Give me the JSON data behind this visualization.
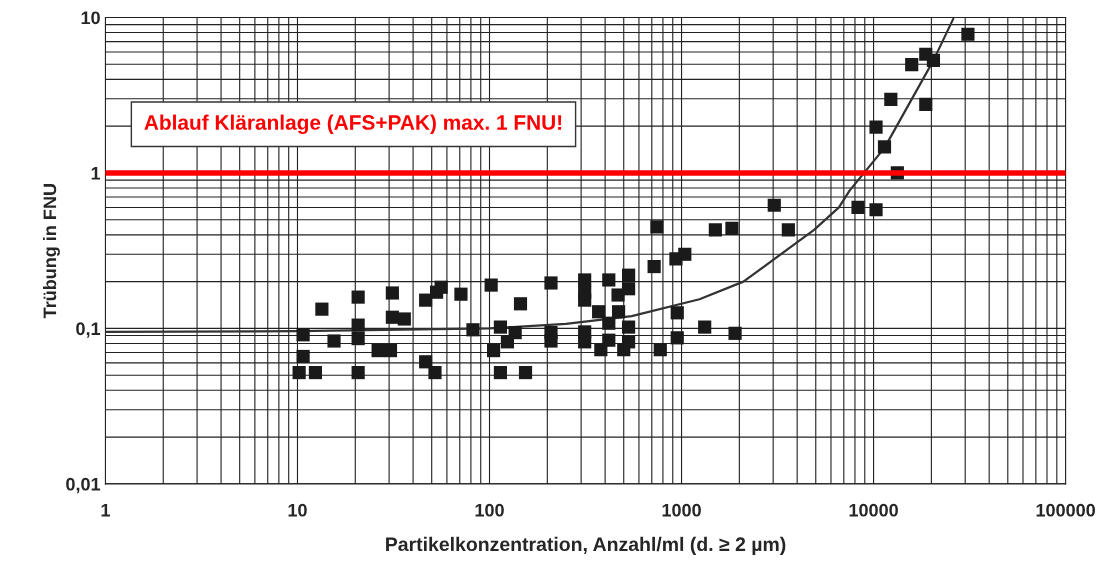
{
  "chart_data": {
    "type": "scatter",
    "xlabel": "Partikelkonzentration, Anzahl/ml (d. ≥ 2 µm)",
    "ylabel": "Trübung in FNU",
    "log": "xy",
    "grid": true,
    "xlim": [
      1,
      100000
    ],
    "ylim": [
      0.01,
      10
    ],
    "xticks": [
      1,
      10,
      100,
      1000,
      10000,
      100000
    ],
    "yticks": [
      {
        "value": 0.01,
        "label": "0,01"
      },
      {
        "value": 0.1,
        "label": "0,1"
      },
      {
        "value": 1,
        "label": "1"
      },
      {
        "value": 10,
        "label": "10"
      }
    ],
    "ref_lines": [
      {
        "axis": "y",
        "value": 1,
        "label": "Ablauf Kläranlage (AFS+PAK) max. 1 FNU!",
        "color": "#ff0000"
      }
    ],
    "series": [
      {
        "marker": "square",
        "color": "#1a1a1a",
        "x": [
          10.7,
          10.7,
          10.2,
          12.4,
          13.4,
          15.5,
          20.7,
          20.7,
          20.7,
          20.7,
          26.3,
          30.5,
          31.2,
          31.2,
          36,
          46.5,
          53,
          56,
          71,
          46.5,
          52,
          82,
          102,
          114,
          136,
          124,
          105,
          145,
          114,
          154,
          209,
          209,
          209,
          313,
          313,
          313,
          313,
          313,
          370,
          380,
          418,
          418,
          418,
          467,
          470,
          530,
          530,
          530,
          530,
          500,
          720,
          775,
          744,
          935,
          1040,
          950,
          950,
          1320,
          1500,
          1830,
          1900,
          3040,
          3600,
          31000,
          18700,
          20500,
          15800,
          12300,
          18700,
          10300,
          11400,
          13300,
          8300,
          10300
        ],
        "values": [
          0.091,
          0.066,
          0.052,
          0.052,
          0.133,
          0.083,
          0.159,
          0.105,
          0.086,
          0.052,
          0.072,
          0.072,
          0.169,
          0.118,
          0.115,
          0.152,
          0.171,
          0.184,
          0.166,
          0.061,
          0.052,
          0.098,
          0.19,
          0.102,
          0.094,
          0.082,
          0.072,
          0.144,
          0.052,
          0.052,
          0.196,
          0.094,
          0.083,
          0.205,
          0.171,
          0.152,
          0.095,
          0.082,
          0.128,
          0.073,
          0.205,
          0.108,
          0.084,
          0.164,
          0.128,
          0.22,
          0.18,
          0.102,
          0.082,
          0.073,
          0.25,
          0.073,
          0.45,
          0.28,
          0.3,
          0.126,
          0.087,
          0.102,
          0.43,
          0.44,
          0.093,
          0.62,
          0.43,
          7.8,
          5.8,
          5.3,
          4.97,
          2.97,
          2.76,
          1.97,
          1.47,
          1.0,
          0.6,
          0.58
        ]
      },
      {
        "type": "line",
        "marker": "none",
        "color": "#333333",
        "x": [
          1,
          10,
          100,
          250,
          550,
          1240,
          2100,
          4900,
          6600,
          7500,
          11400,
          20500,
          26000
        ],
        "values": [
          0.095,
          0.096,
          0.1,
          0.107,
          0.12,
          0.154,
          0.2,
          0.43,
          0.6,
          0.77,
          1.45,
          5.3,
          9.8
        ]
      }
    ]
  }
}
